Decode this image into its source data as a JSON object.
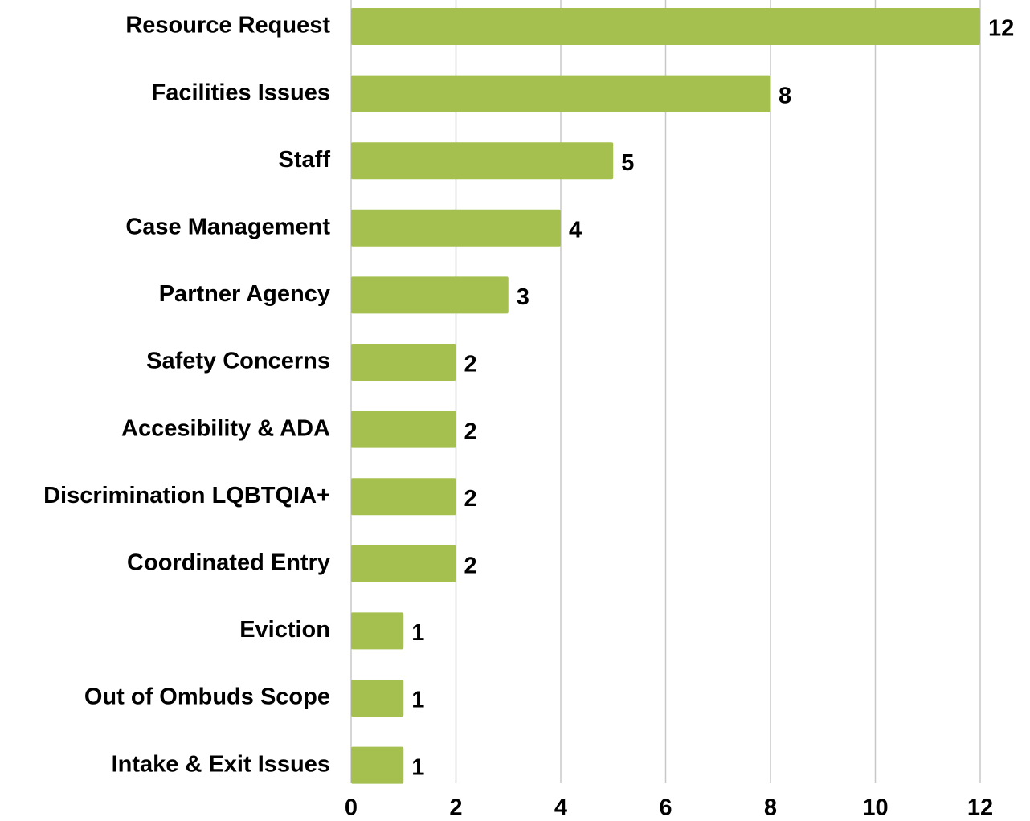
{
  "chart_data": {
    "type": "bar",
    "orientation": "horizontal",
    "categories": [
      "Resource Request",
      "Facilities Issues",
      "Staff",
      "Case Management",
      "Partner Agency",
      "Safety Concerns",
      "Accesibility & ADA",
      "Discrimination LQBTQIA+",
      "Coordinated Entry",
      "Eviction",
      "Out of Ombuds Scope",
      "Intake & Exit Issues"
    ],
    "values": [
      12,
      8,
      5,
      4,
      3,
      2,
      2,
      2,
      2,
      1,
      1,
      1
    ],
    "color": "#a5c04f",
    "xlim": [
      0,
      12
    ],
    "xticks": [
      0,
      2,
      4,
      6,
      8,
      10,
      12
    ],
    "grid": true
  }
}
